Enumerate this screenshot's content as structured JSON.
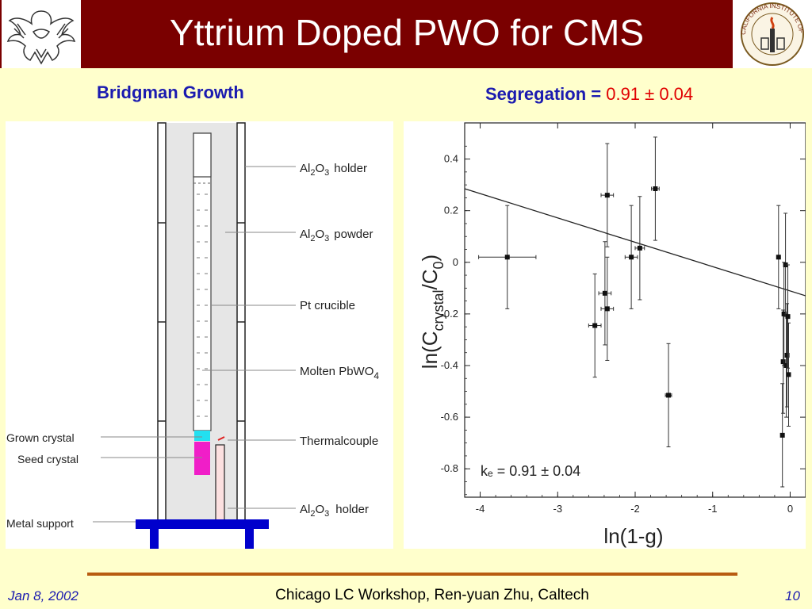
{
  "header": {
    "title": "Yttrium Doped PWO for CMS",
    "colors": {
      "banner": "#7A0000",
      "background": "#FFFFCC",
      "heading": "#1B1BB0",
      "value": "#E00000"
    },
    "left_logo_icon": "eagle-crest-icon",
    "right_logo_icon": "caltech-seal-icon",
    "right_logo_text": "CALIFORNIA INSTITUTE OF TECHNOLOGY 1891"
  },
  "left_heading": "Bridgman Growth",
  "right_heading": {
    "label": "Segregation =",
    "value": "0.91 ± 0.04"
  },
  "diagram": {
    "labels": {
      "holder_top": [
        "Al",
        "2",
        "O",
        "3",
        "holder"
      ],
      "powder": [
        "Al",
        "2",
        "O",
        "3",
        "powder"
      ],
      "crucible": "Pt crucible",
      "molten": [
        "Molten PbWO",
        "4"
      ],
      "thermocouple": "Thermalcouple",
      "holder_bottom": [
        "Al",
        "2",
        "O",
        "3",
        "holder"
      ],
      "grown": "Grown  crystal",
      "seed": "Seed crystal",
      "metal": "Metal  support"
    }
  },
  "chart_data": {
    "type": "scatter",
    "xlabel": "ln(1-g)",
    "ylabel": [
      "ln(C",
      "crystal",
      "/C",
      "0",
      ")"
    ],
    "xlim": [
      -4.2,
      0.2
    ],
    "ylim": [
      -0.91,
      0.54
    ],
    "xticks": [
      -4,
      -3,
      -2,
      -1,
      0
    ],
    "yticks": [
      -0.8,
      -0.6,
      -0.4,
      -0.2,
      0,
      0.2,
      0.4
    ],
    "xtick_labels": [
      "-4",
      "-3",
      "-2",
      "-1",
      "0"
    ],
    "ytick_labels": [
      "-0.8",
      "-0.6",
      "-0.4",
      "-0.2",
      "0",
      "0.2",
      "0.4"
    ],
    "annotation": "kₑ = 0.91 ± 0.04",
    "fit_line": {
      "slope": -0.0943,
      "intercept": -0.111
    },
    "points": [
      {
        "x": -3.65,
        "y": 0.02,
        "xerr": 0.37,
        "yerr": 0.2
      },
      {
        "x": -2.52,
        "y": -0.245,
        "xerr": 0.08,
        "yerr": 0.2
      },
      {
        "x": -2.39,
        "y": -0.12,
        "xerr": 0.08,
        "yerr": 0.2
      },
      {
        "x": -2.36,
        "y": 0.26,
        "xerr": 0.08,
        "yerr": 0.2
      },
      {
        "x": -2.36,
        "y": -0.18,
        "xerr": 0.08,
        "yerr": 0.2
      },
      {
        "x": -2.05,
        "y": 0.02,
        "xerr": 0.08,
        "yerr": 0.2
      },
      {
        "x": -1.94,
        "y": 0.055,
        "xerr": 0.06,
        "yerr": 0.2
      },
      {
        "x": -1.74,
        "y": 0.285,
        "xerr": 0.05,
        "yerr": 0.2
      },
      {
        "x": -1.57,
        "y": -0.515,
        "xerr": 0.04,
        "yerr": 0.2
      },
      {
        "x": -0.15,
        "y": 0.02,
        "xerr": 0.02,
        "yerr": 0.2
      },
      {
        "x": -0.09,
        "y": -0.385,
        "xerr": 0.02,
        "yerr": 0.2
      },
      {
        "x": -0.1,
        "y": -0.67,
        "xerr": 0.02,
        "yerr": 0.2
      },
      {
        "x": -0.08,
        "y": -0.2,
        "xerr": 0.02,
        "yerr": 0.2
      },
      {
        "x": -0.06,
        "y": -0.01,
        "xerr": 0.02,
        "yerr": 0.2
      },
      {
        "x": -0.05,
        "y": -0.4,
        "xerr": 0.02,
        "yerr": 0.2
      },
      {
        "x": -0.04,
        "y": -0.36,
        "xerr": 0.02,
        "yerr": 0.2
      },
      {
        "x": -0.03,
        "y": -0.21,
        "xerr": 0.02,
        "yerr": 0.2
      },
      {
        "x": -0.02,
        "y": -0.435,
        "xerr": 0.02,
        "yerr": 0.2
      }
    ]
  },
  "footer": {
    "date": "Jan 8, 2002",
    "center": "Chicago LC Workshop, Ren-yuan Zhu, Caltech",
    "page": "10"
  }
}
